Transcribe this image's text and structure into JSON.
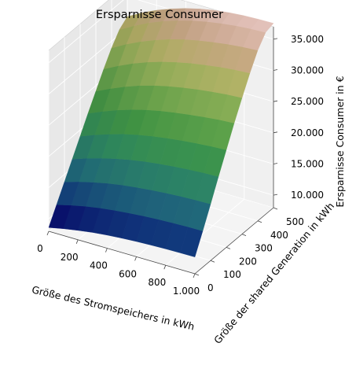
{
  "chart_data": {
    "type": "surface",
    "title": "Ersparnisse Consumer",
    "xlabel": "Größe des Stromspeichers in kWh",
    "ylabel": "Größe der shared Generation in kWh",
    "zlabel": "Ersparnisse Consumer in €",
    "xlim": [
      0,
      1000
    ],
    "ylim": [
      0,
      500
    ],
    "zlim": [
      8000,
      37000
    ],
    "x_ticks": [
      0,
      200,
      400,
      600,
      800,
      1000
    ],
    "x_tick_labels": [
      "0",
      "200",
      "400",
      "600",
      "800",
      "1.000"
    ],
    "y_ticks": [
      0,
      100,
      200,
      300,
      400,
      500
    ],
    "y_tick_labels": [
      "0",
      "100",
      "200",
      "300",
      "400",
      "500"
    ],
    "z_ticks": [
      10000,
      15000,
      20000,
      25000,
      30000,
      35000
    ],
    "z_tick_labels": [
      "10.000",
      "15.000",
      "20.000",
      "25.000",
      "30.000",
      "35.000"
    ],
    "x": [
      0,
      100,
      200,
      300,
      400,
      500,
      600,
      700,
      800,
      900,
      1000
    ],
    "y": [
      0,
      50,
      100,
      150,
      200,
      250,
      300,
      350,
      400,
      450,
      500
    ],
    "z_rows": [
      [
        8600,
        9100,
        9500,
        9850,
        10100,
        10300,
        10450,
        10550,
        10620,
        10660,
        10680
      ],
      [
        11200,
        11800,
        12300,
        12700,
        13000,
        13250,
        13450,
        13600,
        13700,
        13770,
        13800
      ],
      [
        13800,
        14500,
        15100,
        15600,
        16000,
        16300,
        16550,
        16750,
        16900,
        17000,
        17050
      ],
      [
        16400,
        17200,
        17900,
        18500,
        19000,
        19400,
        19700,
        19950,
        20150,
        20300,
        20400
      ],
      [
        19000,
        19900,
        20700,
        21400,
        21950,
        22400,
        22750,
        23050,
        23300,
        23500,
        23620
      ],
      [
        21600,
        22600,
        23500,
        24250,
        24900,
        25400,
        25800,
        26150,
        26450,
        26700,
        26850
      ],
      [
        24100,
        25200,
        26200,
        27050,
        27750,
        28300,
        28750,
        29150,
        29450,
        29700,
        29850
      ],
      [
        26600,
        27800,
        28850,
        29750,
        30500,
        31100,
        31600,
        32000,
        32350,
        32600,
        32750
      ],
      [
        28900,
        30200,
        31300,
        32250,
        33050,
        33700,
        34200,
        34600,
        34950,
        35200,
        35350
      ],
      [
        30800,
        32100,
        33250,
        34200,
        35000,
        35650,
        36150,
        36550,
        36850,
        37050,
        37150
      ],
      [
        31800,
        33100,
        34200,
        35100,
        35850,
        36450,
        36900,
        37200,
        37400,
        37500,
        37550
      ]
    ],
    "colormap": "gist_earth",
    "grid": true
  }
}
